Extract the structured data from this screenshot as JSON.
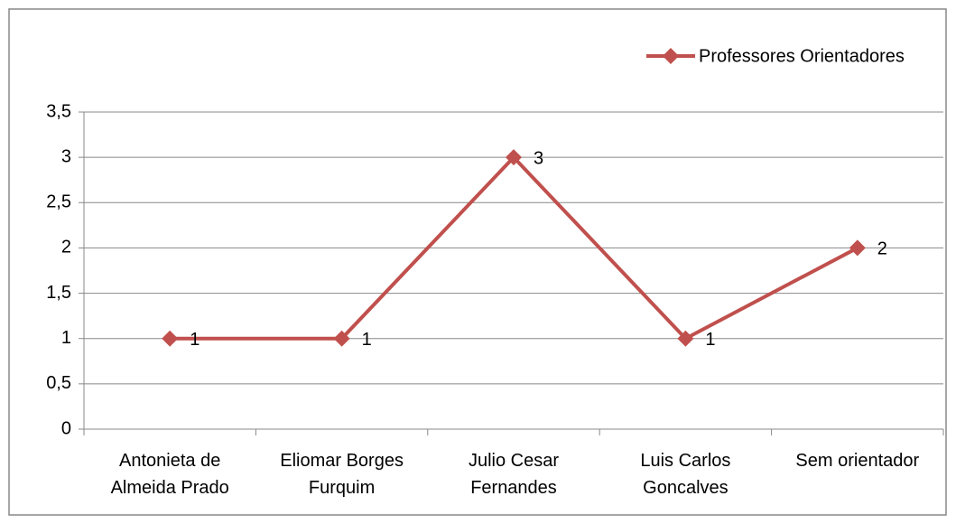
{
  "chart_data": {
    "type": "line",
    "categories": [
      "Antonieta de Almeida Prado",
      "Eliomar Borges Furquim",
      "Julio Cesar Fernandes",
      "Luis Carlos Goncalves",
      "Sem orientador"
    ],
    "series": [
      {
        "name": "Professores Orientadores",
        "color": "#c0504d",
        "values": [
          1,
          1,
          3,
          1,
          2
        ]
      }
    ],
    "ylim": [
      0,
      3.5
    ],
    "yticks": [
      0,
      {
        "value": 0.5,
        "label": "0,5"
      },
      1,
      {
        "value": 1.5,
        "label": "1,5"
      },
      2,
      {
        "value": 2.5,
        "label": "2,5"
      },
      3,
      {
        "value": 3.5,
        "label": "3,5"
      }
    ],
    "grid": true,
    "legend": "top-right",
    "data_labels": true
  }
}
